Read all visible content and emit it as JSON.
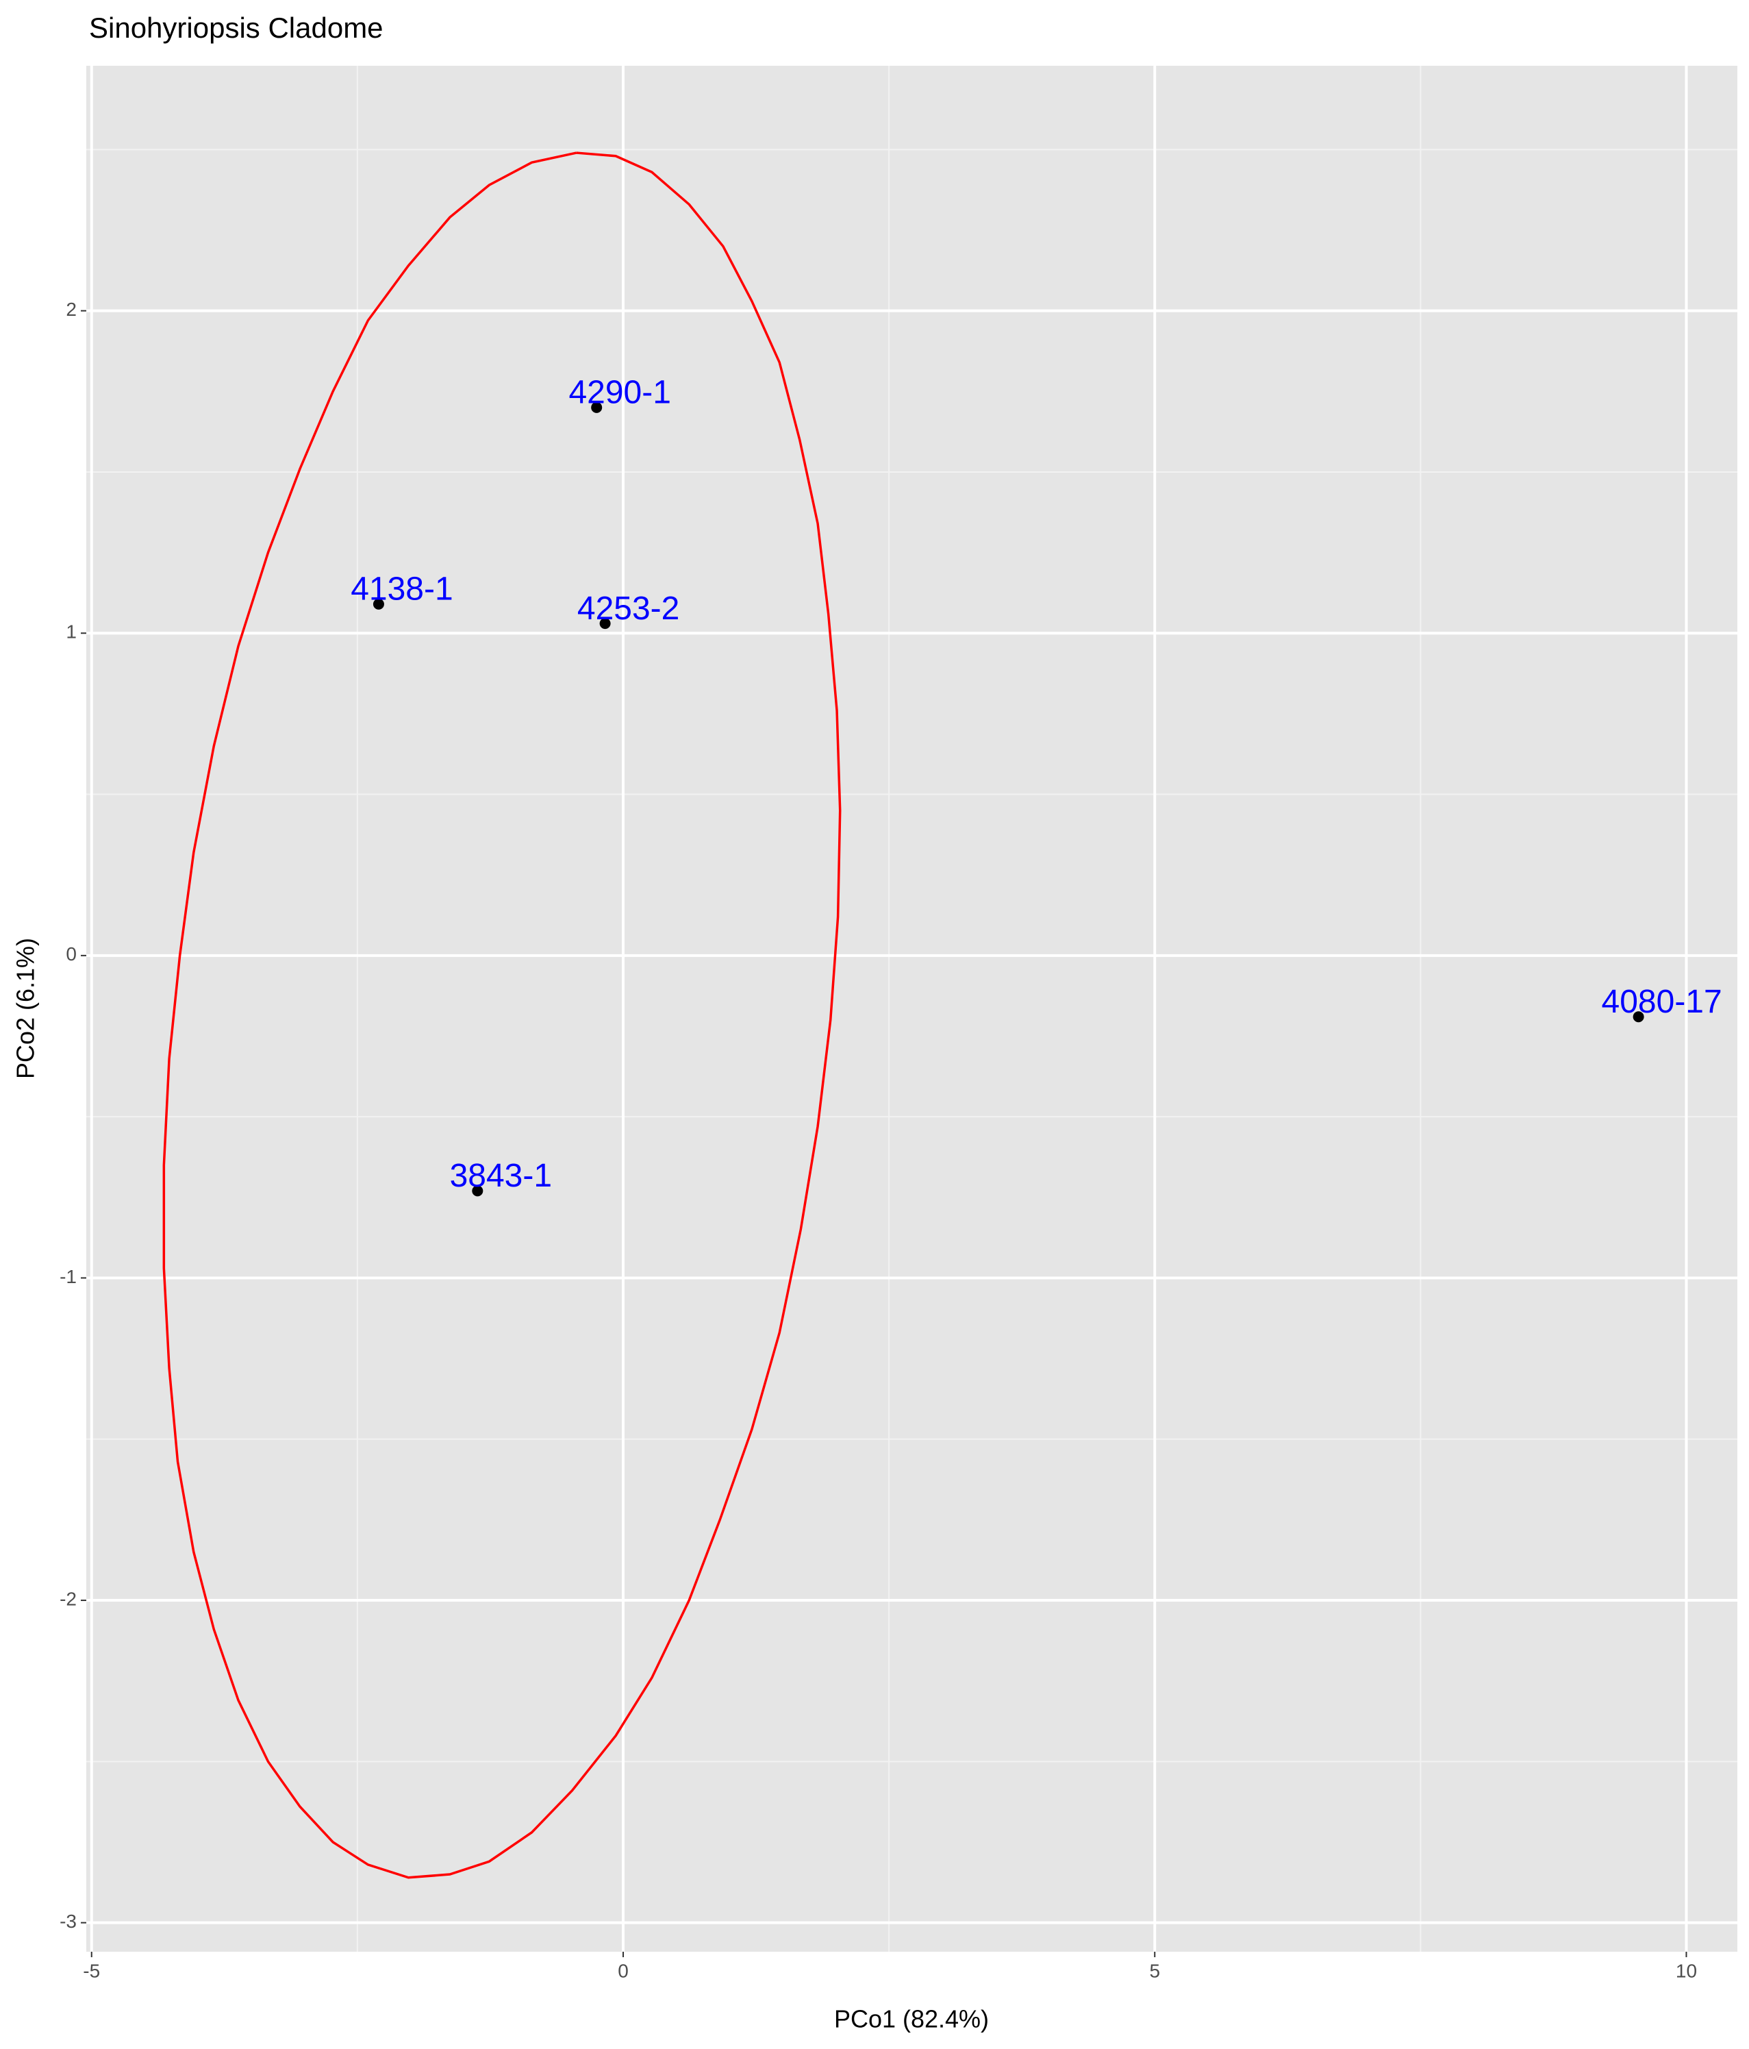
{
  "chart_data": {
    "type": "scatter",
    "title": "Sinohyriopsis Cladome",
    "x_label": "PCo1 (82.4%)",
    "y_label": "PCo2 (6.1%)",
    "xlim": [
      -5.05,
      10.48
    ],
    "ylim": [
      -3.09,
      2.76
    ],
    "xticks": [
      -5,
      0,
      5,
      10
    ],
    "yticks": [
      -3,
      -2,
      -1,
      0,
      1,
      2
    ],
    "grid": true,
    "points": {
      "labels": [
        "4290-1",
        "4138-1",
        "4253-2",
        "3843-1",
        "4080-17"
      ],
      "x": [
        -0.25,
        -2.3,
        -0.17,
        -1.37,
        9.55
      ],
      "y": [
        1.7,
        1.09,
        1.03,
        -0.73,
        -0.19
      ],
      "color": "#000000",
      "label_color": "#0000ff"
    },
    "ellipse": {
      "color": "#ff0000",
      "x": [
        -0.44,
        -0.07,
        0.27,
        0.62,
        0.94,
        1.21,
        1.47,
        1.66,
        1.83,
        1.93,
        2.01,
        2.04,
        2.02,
        1.95,
        1.83,
        1.67,
        1.47,
        1.21,
        0.91,
        0.62,
        0.27,
        -0.07,
        -0.48,
        -0.86,
        -1.26,
        -1.63,
        -2.02,
        -2.4,
        -2.73,
        -3.04,
        -3.34,
        -3.62,
        -3.85,
        -4.04,
        -4.19,
        -4.27,
        -4.32,
        -4.32,
        -4.27,
        -4.17,
        -4.04,
        -3.85,
        -3.62,
        -3.34,
        -3.04,
        -2.73,
        -2.4,
        -2.02,
        -1.63,
        -1.26,
        -0.86,
        -0.44
      ],
      "y": [
        2.49,
        2.48,
        2.43,
        2.33,
        2.2,
        2.03,
        1.84,
        1.6,
        1.34,
        1.06,
        0.76,
        0.45,
        0.12,
        -0.2,
        -0.53,
        -0.85,
        -1.17,
        -1.47,
        -1.75,
        -2.0,
        -2.24,
        -2.42,
        -2.59,
        -2.72,
        -2.81,
        -2.85,
        -2.86,
        -2.82,
        -2.75,
        -2.64,
        -2.5,
        -2.31,
        -2.09,
        -1.85,
        -1.57,
        -1.28,
        -0.97,
        -0.65,
        -0.32,
        0.0,
        0.32,
        0.65,
        0.96,
        1.25,
        1.51,
        1.75,
        1.97,
        2.14,
        2.29,
        2.39,
        2.46,
        2.49
      ]
    }
  }
}
